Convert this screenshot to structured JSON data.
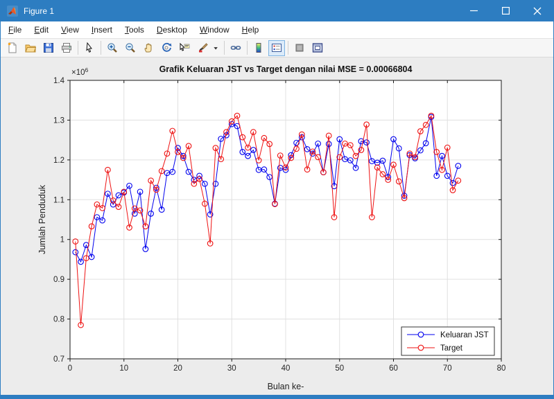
{
  "window": {
    "title": "Figure 1",
    "accent_color": "#2d7dc1",
    "controls": [
      {
        "name": "minimize-button",
        "glyph": "minimize"
      },
      {
        "name": "maximize-button",
        "glyph": "maximize"
      },
      {
        "name": "close-button",
        "glyph": "close"
      }
    ]
  },
  "menu": {
    "items": [
      "File",
      "Edit",
      "View",
      "Insert",
      "Tools",
      "Desktop",
      "Window",
      "Help"
    ]
  },
  "toolbar": {
    "groups": [
      [
        "new-figure-icon",
        "open-file-icon",
        "save-figure-icon",
        "print-figure-icon"
      ],
      [
        "edit-plot-icon"
      ],
      [
        "zoom-in-icon",
        "zoom-out-icon",
        "pan-icon",
        "rotate-3d-icon",
        "data-cursor-icon",
        "brush-icon",
        "brush-dropdown-icon"
      ],
      [
        "link-plots-icon"
      ],
      [
        "insert-colorbar-icon",
        "insert-legend-icon"
      ],
      [
        "hide-plot-tools-icon",
        "show-plot-tools-icon"
      ]
    ],
    "active_button": "insert-legend-icon"
  },
  "chart": {
    "title": "Grafik Keluaran JST vs Target dengan nilai MSE = 0.00066804",
    "xlabel": "Bulan ke-",
    "ylabel": "Jumlah Penduduk",
    "exponent_label": {
      "mantissa": "×10",
      "exponent": "6"
    },
    "x_ticks": [
      "0",
      "10",
      "20",
      "30",
      "40",
      "50",
      "60",
      "70",
      "80"
    ],
    "y_ticks": [
      "0.7",
      "0.8",
      "0.9",
      "1",
      "1.1",
      "1.2",
      "1.3",
      "1.4"
    ],
    "grid_color": "#e0e0e0",
    "axis_color": "#1a1a1a",
    "plot_bg": "#ffffff",
    "legend": {
      "entries": [
        {
          "label": "Keluaran JST",
          "color": "#0000ee"
        },
        {
          "label": "Target",
          "color": "#ee1111"
        }
      ],
      "position": "bottom-right"
    }
  },
  "chart_data": {
    "type": "line",
    "marker": "o",
    "unit_multiplier": 1000000,
    "xlim": [
      0,
      80
    ],
    "ylim": [
      0.7,
      1.4
    ],
    "grid": true,
    "x": [
      1,
      2,
      3,
      4,
      5,
      6,
      7,
      8,
      9,
      10,
      11,
      12,
      13,
      14,
      15,
      16,
      17,
      18,
      19,
      20,
      21,
      22,
      23,
      24,
      25,
      26,
      27,
      28,
      29,
      30,
      31,
      32,
      33,
      34,
      35,
      36,
      37,
      38,
      39,
      40,
      41,
      42,
      43,
      44,
      45,
      46,
      47,
      48,
      49,
      50,
      51,
      52,
      53,
      54,
      55,
      56,
      57,
      58,
      59,
      60,
      61,
      62,
      63,
      64,
      65,
      66,
      67,
      68,
      69,
      70,
      71,
      72
    ],
    "series": [
      {
        "name": "Keluaran JST",
        "color": "#0000ee",
        "values": [
          0.968,
          0.944,
          0.986,
          0.956,
          1.056,
          1.048,
          1.115,
          1.088,
          1.111,
          1.118,
          1.135,
          1.065,
          1.12,
          0.976,
          1.065,
          1.13,
          1.075,
          1.167,
          1.17,
          1.23,
          1.21,
          1.17,
          1.15,
          1.16,
          1.14,
          1.063,
          1.14,
          1.253,
          1.262,
          1.29,
          1.285,
          1.22,
          1.21,
          1.225,
          1.175,
          1.176,
          1.157,
          1.09,
          1.18,
          1.175,
          1.212,
          1.243,
          1.257,
          1.227,
          1.216,
          1.241,
          1.169,
          1.24,
          1.134,
          1.252,
          1.202,
          1.199,
          1.18,
          1.247,
          1.244,
          1.197,
          1.193,
          1.198,
          1.157,
          1.252,
          1.229,
          1.11,
          1.212,
          1.204,
          1.224,
          1.242,
          1.308,
          1.16,
          1.21,
          1.16,
          1.142,
          1.185
        ]
      },
      {
        "name": "Target",
        "color": "#ee1111",
        "values": [
          0.995,
          0.785,
          0.953,
          1.033,
          1.088,
          1.079,
          1.175,
          1.098,
          1.082,
          1.12,
          1.03,
          1.078,
          1.073,
          1.033,
          1.148,
          1.125,
          1.172,
          1.216,
          1.273,
          1.22,
          1.205,
          1.235,
          1.14,
          1.152,
          1.09,
          0.99,
          1.23,
          1.202,
          1.27,
          1.297,
          1.311,
          1.257,
          1.231,
          1.27,
          1.199,
          1.255,
          1.24,
          1.089,
          1.211,
          1.181,
          1.205,
          1.228,
          1.264,
          1.176,
          1.221,
          1.207,
          1.169,
          1.261,
          1.056,
          1.207,
          1.241,
          1.237,
          1.21,
          1.225,
          1.289,
          1.056,
          1.181,
          1.164,
          1.15,
          1.188,
          1.146,
          1.104,
          1.216,
          1.207,
          1.272,
          1.288,
          1.311,
          1.22,
          1.175,
          1.231,
          1.124,
          1.148
        ]
      }
    ]
  }
}
